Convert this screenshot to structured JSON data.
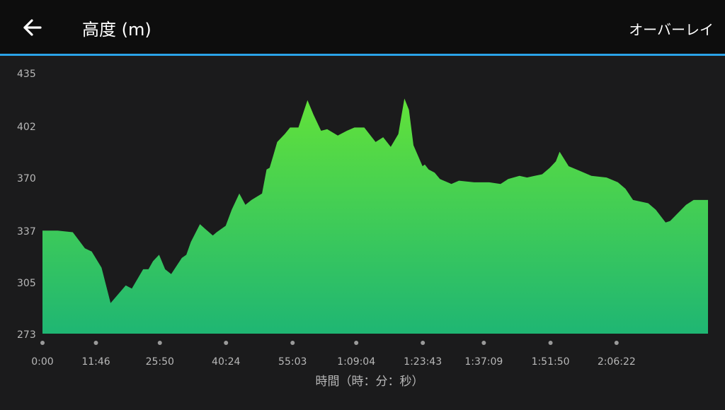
{
  "header": {
    "back_icon": "arrow-left-icon",
    "title": "高度 (m)",
    "overlay_label": "オーバーレイ"
  },
  "colors": {
    "accent_line": "#2aa3e8",
    "fill_top": "#62e23a",
    "fill_bottom": "#1fb673",
    "axis_text": "#b8b8b8",
    "background": "#1b1b1c"
  },
  "chart_data": {
    "type": "area",
    "ylabel": "",
    "xlabel": "時間（時：分：秒）",
    "yticks": [
      "435",
      "402",
      "370",
      "337",
      "305",
      "273"
    ],
    "ytick_values": [
      435,
      402,
      370,
      337,
      305,
      273
    ],
    "ylim": [
      273,
      435
    ],
    "xticks": [
      "0:00",
      "11:46",
      "25:50",
      "40:24",
      "55:03",
      "1:09:04",
      "1:23:43",
      "1:37:09",
      "1:51:50",
      "2:06:22"
    ],
    "xtick_seconds": [
      0,
      706,
      1550,
      2424,
      3303,
      4144,
      5023,
      5829,
      6710,
      7582
    ],
    "xlim_seconds": [
      0,
      8790
    ],
    "grid": false,
    "series": [
      {
        "x": [
          0,
          200,
          400,
          560,
          650,
          780,
          900,
          1100,
          1180,
          1330,
          1400,
          1460,
          1540,
          1620,
          1700,
          1840,
          1900,
          1960,
          2080,
          2150,
          2250,
          2300,
          2420,
          2500,
          2600,
          2680,
          2760,
          2900,
          2960,
          3000,
          3050,
          3100,
          3200,
          3270,
          3380,
          3500,
          3580,
          3680,
          3760,
          3900,
          4020,
          4120,
          4250,
          4400,
          4500,
          4600,
          4700,
          4780,
          4840,
          4900,
          5020,
          5050,
          5100,
          5180,
          5250,
          5400,
          5500,
          5700,
          5900,
          6050,
          6150,
          6300,
          6400,
          6500,
          6600,
          6700,
          6780,
          6830,
          6950,
          7100,
          7250,
          7450,
          7600,
          7700,
          7800,
          8000,
          8100,
          8230,
          8290,
          8500,
          8600,
          8790
        ],
        "y": [
          337,
          337,
          336,
          326,
          324,
          314,
          292,
          303,
          301,
          313,
          313,
          318,
          322,
          313,
          310,
          320,
          322,
          330,
          341,
          338,
          334,
          336,
          340,
          350,
          360,
          353,
          356,
          360,
          375,
          376,
          384,
          392,
          397,
          401,
          401,
          418,
          409,
          399,
          400,
          396,
          399,
          401,
          401,
          392,
          395,
          389,
          397,
          419,
          412,
          390,
          377,
          378,
          375,
          373,
          369,
          366,
          368,
          367,
          367,
          366,
          369,
          371,
          370,
          371,
          372,
          376,
          380,
          386,
          377,
          374,
          371,
          370,
          367,
          363,
          356,
          354,
          350,
          342,
          343,
          353,
          356,
          356
        ]
      }
    ]
  }
}
